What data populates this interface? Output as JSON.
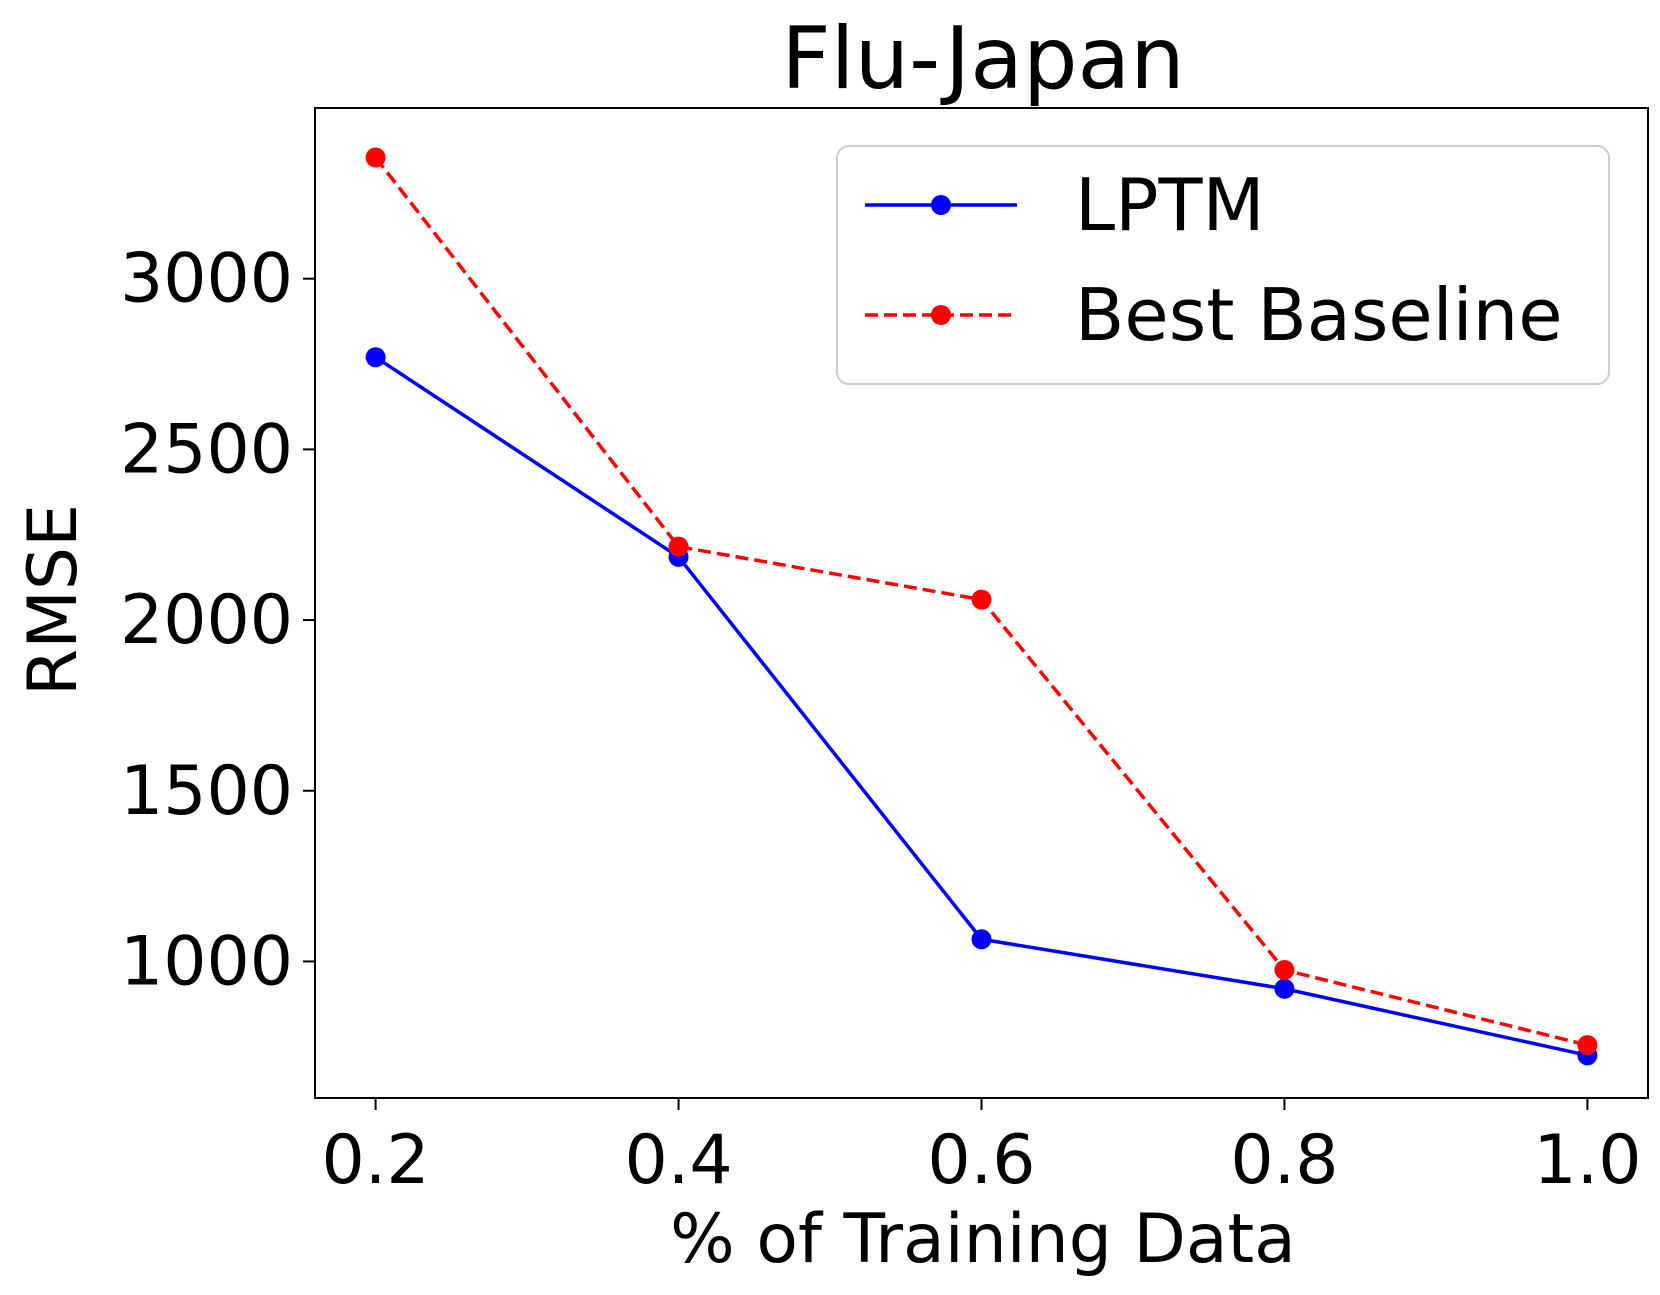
{
  "chart_data": {
    "type": "line",
    "title": "Flu-Japan",
    "xlabel": "% of Training Data",
    "ylabel": "RMSE",
    "x": [
      0.2,
      0.4,
      0.6,
      0.8,
      1.0
    ],
    "x_ticks": [
      0.2,
      0.4,
      0.6,
      0.8,
      1.0
    ],
    "x_tick_labels": [
      "0.2",
      "0.4",
      "0.6",
      "0.8",
      "1.0"
    ],
    "y_ticks": [
      1000,
      1500,
      2000,
      2500,
      3000
    ],
    "y_tick_labels": [
      "1000",
      "1500",
      "2000",
      "2500",
      "3000"
    ],
    "xlim": [
      0.16,
      1.04
    ],
    "ylim": [
      600,
      3500
    ],
    "grid": false,
    "legend_position": "top-right",
    "series": [
      {
        "name": "LPTM",
        "values": [
          2770,
          2185,
          1065,
          920,
          725
        ],
        "color": "#0000ff",
        "line_style": "solid",
        "marker": "circle"
      },
      {
        "name": "Best Baseline",
        "values": [
          3355,
          2215,
          2060,
          975,
          755
        ],
        "color": "#ff0000",
        "line_style": "dashed",
        "marker": "circle"
      }
    ]
  }
}
